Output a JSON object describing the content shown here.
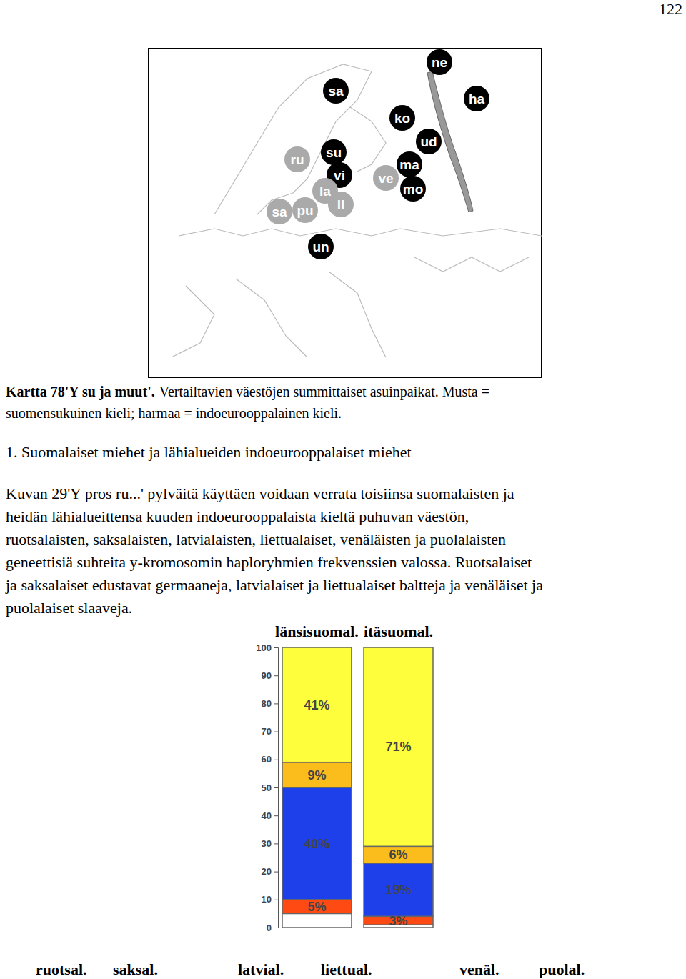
{
  "page_number": "122",
  "map": {
    "markers": [
      {
        "label": "ne",
        "color": "#000000"
      },
      {
        "label": "sa",
        "color": "#000000"
      },
      {
        "label": "ha",
        "color": "#000000"
      },
      {
        "label": "ko",
        "color": "#000000"
      },
      {
        "label": "ud",
        "color": "#000000"
      },
      {
        "label": "ru",
        "color": "#aaaaaa"
      },
      {
        "label": "su",
        "color": "#000000"
      },
      {
        "label": "vi",
        "color": "#000000"
      },
      {
        "label": "ma",
        "color": "#000000"
      },
      {
        "label": "ve",
        "color": "#aaaaaa"
      },
      {
        "label": "mo",
        "color": "#000000"
      },
      {
        "label": "la",
        "color": "#aaaaaa"
      },
      {
        "label": "li",
        "color": "#aaaaaa"
      },
      {
        "label": "sa",
        "color": "#aaaaaa"
      },
      {
        "label": "pu",
        "color": "#aaaaaa"
      },
      {
        "label": "un",
        "color": "#000000"
      }
    ]
  },
  "caption": {
    "bold": "Kartta 78'Y su ja muut'.",
    "lines": [
      "Vertailtavien väestöjen summittaiset asuinpaikat. Musta =",
      "suomensukuinen kieli; harmaa = indoeurooppalainen kieli."
    ]
  },
  "heading": "1. Suomalaiset miehet ja lähialueiden indoeurooppalaiset miehet",
  "paragraph": [
    "Kuvan 29'Y pros ru...' pylväitä käyttäen voidaan verrata toisiinsa suomalaisten ja",
    "heidän lähialueittensa kuuden indoeurooppalaista kieltä puhuvan väestön,",
    "ruotsalaisten, saksalaisten, latvialaisten, liettualaiset, venäläisten ja puolalaisten",
    "geneettisiä suhteita y-kromosomin haploryhmien frekvenssien valossa. Ruotsalaiset",
    "ja saksalaiset edustavat germaaneja, latvialaiset ja liettualaiset baltteja ja venäläiset ja",
    "puolalaiset slaaveja."
  ],
  "chart_data": {
    "type": "bar",
    "stacked": true,
    "data_labels": true,
    "tick_labels": "y",
    "categories": [
      "länsisuomal.",
      "itäsuomal."
    ],
    "ylim": [
      0,
      100
    ],
    "yticks": [
      0,
      10,
      20,
      30,
      40,
      50,
      60,
      70,
      80,
      90,
      100
    ],
    "series": [
      {
        "color": "#ffffff",
        "values": [
          5,
          1
        ],
        "value_labels": [
          null,
          null
        ]
      },
      {
        "color": "#ff4a14",
        "values": [
          5,
          3
        ],
        "value_labels": [
          "5%",
          "3%"
        ]
      },
      {
        "color": "#1e40ea",
        "values": [
          40,
          19
        ],
        "value_labels": [
          "40%",
          "19%"
        ]
      },
      {
        "color": "#fbbd1c",
        "values": [
          9,
          6
        ],
        "value_labels": [
          "9%",
          "6%"
        ]
      },
      {
        "color": "#fefe3c",
        "values": [
          41,
          71
        ],
        "value_labels": [
          "41%",
          "71%"
        ]
      }
    ]
  },
  "footer_labels": [
    "ruotsal.",
    "saksal.",
    "latvial.",
    "liettual.",
    "venäl.",
    "puolal."
  ]
}
